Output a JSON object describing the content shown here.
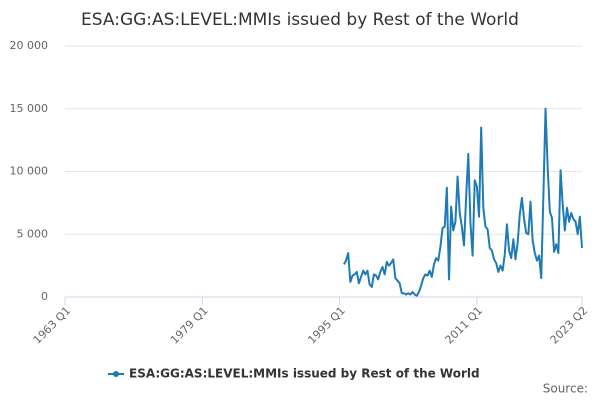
{
  "chart_data": {
    "type": "line",
    "title": "ESA:GG:AS:LEVEL:MMIs issued by Rest of the World",
    "source": "Source:",
    "x": [
      "1995 Q3",
      "1995 Q4",
      "1996 Q1",
      "1996 Q2",
      "1996 Q3",
      "1996 Q4",
      "1997 Q1",
      "1997 Q2",
      "1997 Q3",
      "1997 Q4",
      "1998 Q1",
      "1998 Q2",
      "1998 Q3",
      "1998 Q4",
      "1999 Q1",
      "1999 Q2",
      "1999 Q3",
      "1999 Q4",
      "2000 Q1",
      "2000 Q2",
      "2000 Q3",
      "2000 Q4",
      "2001 Q1",
      "2001 Q2",
      "2001 Q3",
      "2001 Q4",
      "2002 Q1",
      "2002 Q2",
      "2002 Q3",
      "2002 Q4",
      "2003 Q1",
      "2003 Q2",
      "2003 Q3",
      "2003 Q4",
      "2004 Q1",
      "2004 Q2",
      "2004 Q3",
      "2004 Q4",
      "2005 Q1",
      "2005 Q2",
      "2005 Q3",
      "2005 Q4",
      "2006 Q1",
      "2006 Q2",
      "2006 Q3",
      "2006 Q4",
      "2007 Q1",
      "2007 Q2",
      "2007 Q3",
      "2007 Q4",
      "2008 Q1",
      "2008 Q2",
      "2008 Q3",
      "2008 Q4",
      "2009 Q1",
      "2009 Q2",
      "2009 Q3",
      "2009 Q4",
      "2010 Q1",
      "2010 Q2",
      "2010 Q3",
      "2010 Q4",
      "2011 Q1",
      "2011 Q2",
      "2011 Q3",
      "2011 Q4",
      "2012 Q1",
      "2012 Q2",
      "2012 Q3",
      "2012 Q4",
      "2013 Q1",
      "2013 Q2",
      "2013 Q3",
      "2013 Q4",
      "2014 Q1",
      "2014 Q2",
      "2014 Q3",
      "2014 Q4",
      "2015 Q1",
      "2015 Q2",
      "2015 Q3",
      "2015 Q4",
      "2016 Q1",
      "2016 Q2",
      "2016 Q3",
      "2016 Q4",
      "2017 Q1",
      "2017 Q2",
      "2017 Q3",
      "2017 Q4",
      "2018 Q1",
      "2018 Q2",
      "2018 Q3",
      "2018 Q4",
      "2019 Q1",
      "2019 Q2",
      "2019 Q3",
      "2019 Q4",
      "2020 Q1",
      "2020 Q2",
      "2020 Q3",
      "2020 Q4",
      "2021 Q1",
      "2021 Q2",
      "2021 Q3",
      "2021 Q4",
      "2022 Q1",
      "2022 Q2",
      "2022 Q3",
      "2022 Q4",
      "2023 Q1",
      "2023 Q2"
    ],
    "series": [
      {
        "name": "ESA:GG:AS:LEVEL:MMIs issued by Rest of the World",
        "color": "#1f7bb6",
        "values": [
          2600,
          2900,
          3500,
          1200,
          1700,
          1800,
          2000,
          1100,
          1600,
          2100,
          1800,
          2100,
          1000,
          800,
          1800,
          1700,
          1400,
          2000,
          2400,
          1800,
          2800,
          2500,
          2700,
          3000,
          1500,
          1300,
          1100,
          300,
          300,
          200,
          300,
          200,
          400,
          200,
          100,
          400,
          900,
          1500,
          1800,
          1700,
          2100,
          1600,
          2600,
          3100,
          2900,
          4000,
          5500,
          5600,
          8700,
          1400,
          7200,
          5300,
          6000,
          9600,
          6700,
          5600,
          4100,
          8000,
          11400,
          5900,
          3300,
          9300,
          8800,
          6400,
          13500,
          7100,
          5600,
          5400,
          3900,
          3700,
          3000,
          2700,
          2000,
          2500,
          2100,
          3400,
          5800,
          3700,
          3100,
          4600,
          3000,
          4300,
          6600,
          7900,
          6200,
          5100,
          5000,
          7600,
          4500,
          3500,
          2900,
          3300,
          1500,
          8100,
          15000,
          10300,
          6800,
          6300,
          3600,
          4200,
          3500,
          10100,
          7400,
          5300,
          7100,
          6000,
          6700,
          6200,
          6000,
          5000,
          6400,
          3900
        ]
      }
    ],
    "xlim": [
      "1963 Q1",
      "2023 Q2"
    ],
    "xticks": [
      "1963 Q1",
      "1979 Q1",
      "1995 Q1",
      "2011 Q1",
      "2023 Q2"
    ],
    "ylim": [
      0,
      20000
    ],
    "yticks": [
      0,
      {
        "value": 5000,
        "label": "5 000"
      },
      {
        "value": 10000,
        "label": "10 000"
      },
      {
        "value": 15000,
        "label": "15 000"
      },
      {
        "value": 20000,
        "label": "20 000"
      }
    ],
    "grid": true,
    "legend": "bottom"
  }
}
